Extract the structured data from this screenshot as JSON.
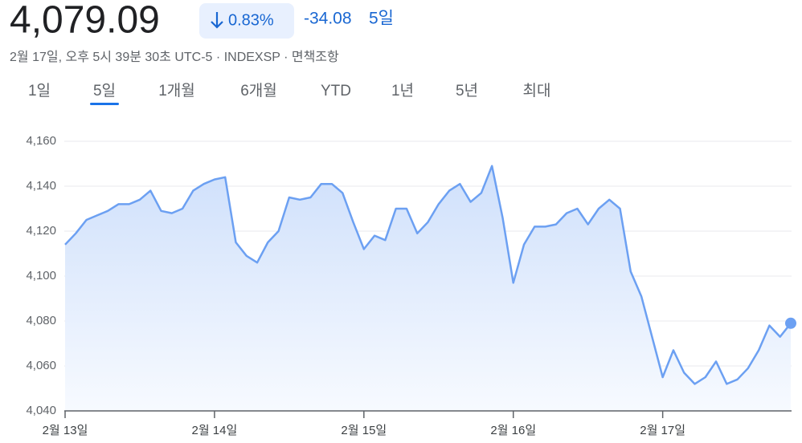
{
  "header": {
    "price": "4,079.09",
    "change_percent": "0.83%",
    "change": "-34.08",
    "period": "5일",
    "timestamp": "2월 17일, 오후 5시 39분 30초 UTC-5",
    "exchange": "INDEXSP",
    "disclaimer": "면책조항"
  },
  "tabs": [
    "1일",
    "5일",
    "1개월",
    "6개월",
    "YTD",
    "1년",
    "5년",
    "최대"
  ],
  "selected_tab": 1,
  "chart_data": {
    "type": "line",
    "categories": [
      "2월 13일",
      null,
      null,
      null,
      null,
      null,
      null,
      null,
      null,
      null,
      null,
      null,
      null,
      null,
      "2월 14일",
      null,
      null,
      null,
      null,
      null,
      null,
      null,
      null,
      null,
      null,
      null,
      null,
      null,
      "2월 15일",
      null,
      null,
      null,
      null,
      null,
      null,
      null,
      null,
      null,
      null,
      null,
      null,
      null,
      "2월 16일",
      null,
      null,
      null,
      null,
      null,
      null,
      null,
      null,
      null,
      null,
      null,
      null,
      null,
      "2월 17일",
      null,
      null,
      null,
      null,
      null,
      null,
      null,
      null,
      null,
      null,
      null,
      null
    ],
    "values": [
      4114,
      4119,
      4125,
      4127,
      4129,
      4132,
      4132,
      4134,
      4138,
      4129,
      4128,
      4130,
      4138,
      4141,
      4143,
      4144,
      4115,
      4109,
      4106,
      4115,
      4120,
      4135,
      4134,
      4135,
      4141,
      4141,
      4137,
      4124,
      4112,
      4118,
      4116,
      4130,
      4130,
      4119,
      4124,
      4132,
      4138,
      4141,
      4133,
      4137,
      4149,
      4126,
      4097,
      4114,
      4122,
      4122,
      4123,
      4128,
      4130,
      4123,
      4130,
      4134,
      4130,
      4102,
      4091,
      4073,
      4055,
      4067,
      4057,
      4052,
      4055,
      4062,
      4052,
      4054,
      4059,
      4067,
      4078,
      4073,
      4079
    ],
    "color": "#6ca0f2",
    "ylim": [
      4040,
      4160
    ],
    "yticks": [
      {
        "value": 4040,
        "label": "4,040"
      },
      {
        "value": 4060,
        "label": "4,060"
      },
      {
        "value": 4080,
        "label": "4,080"
      },
      {
        "value": 4100,
        "label": "4,100"
      },
      {
        "value": 4120,
        "label": "4,120"
      },
      {
        "value": 4140,
        "label": "4,140"
      },
      {
        "value": 4160,
        "label": "4,160"
      }
    ],
    "grid": true
  }
}
